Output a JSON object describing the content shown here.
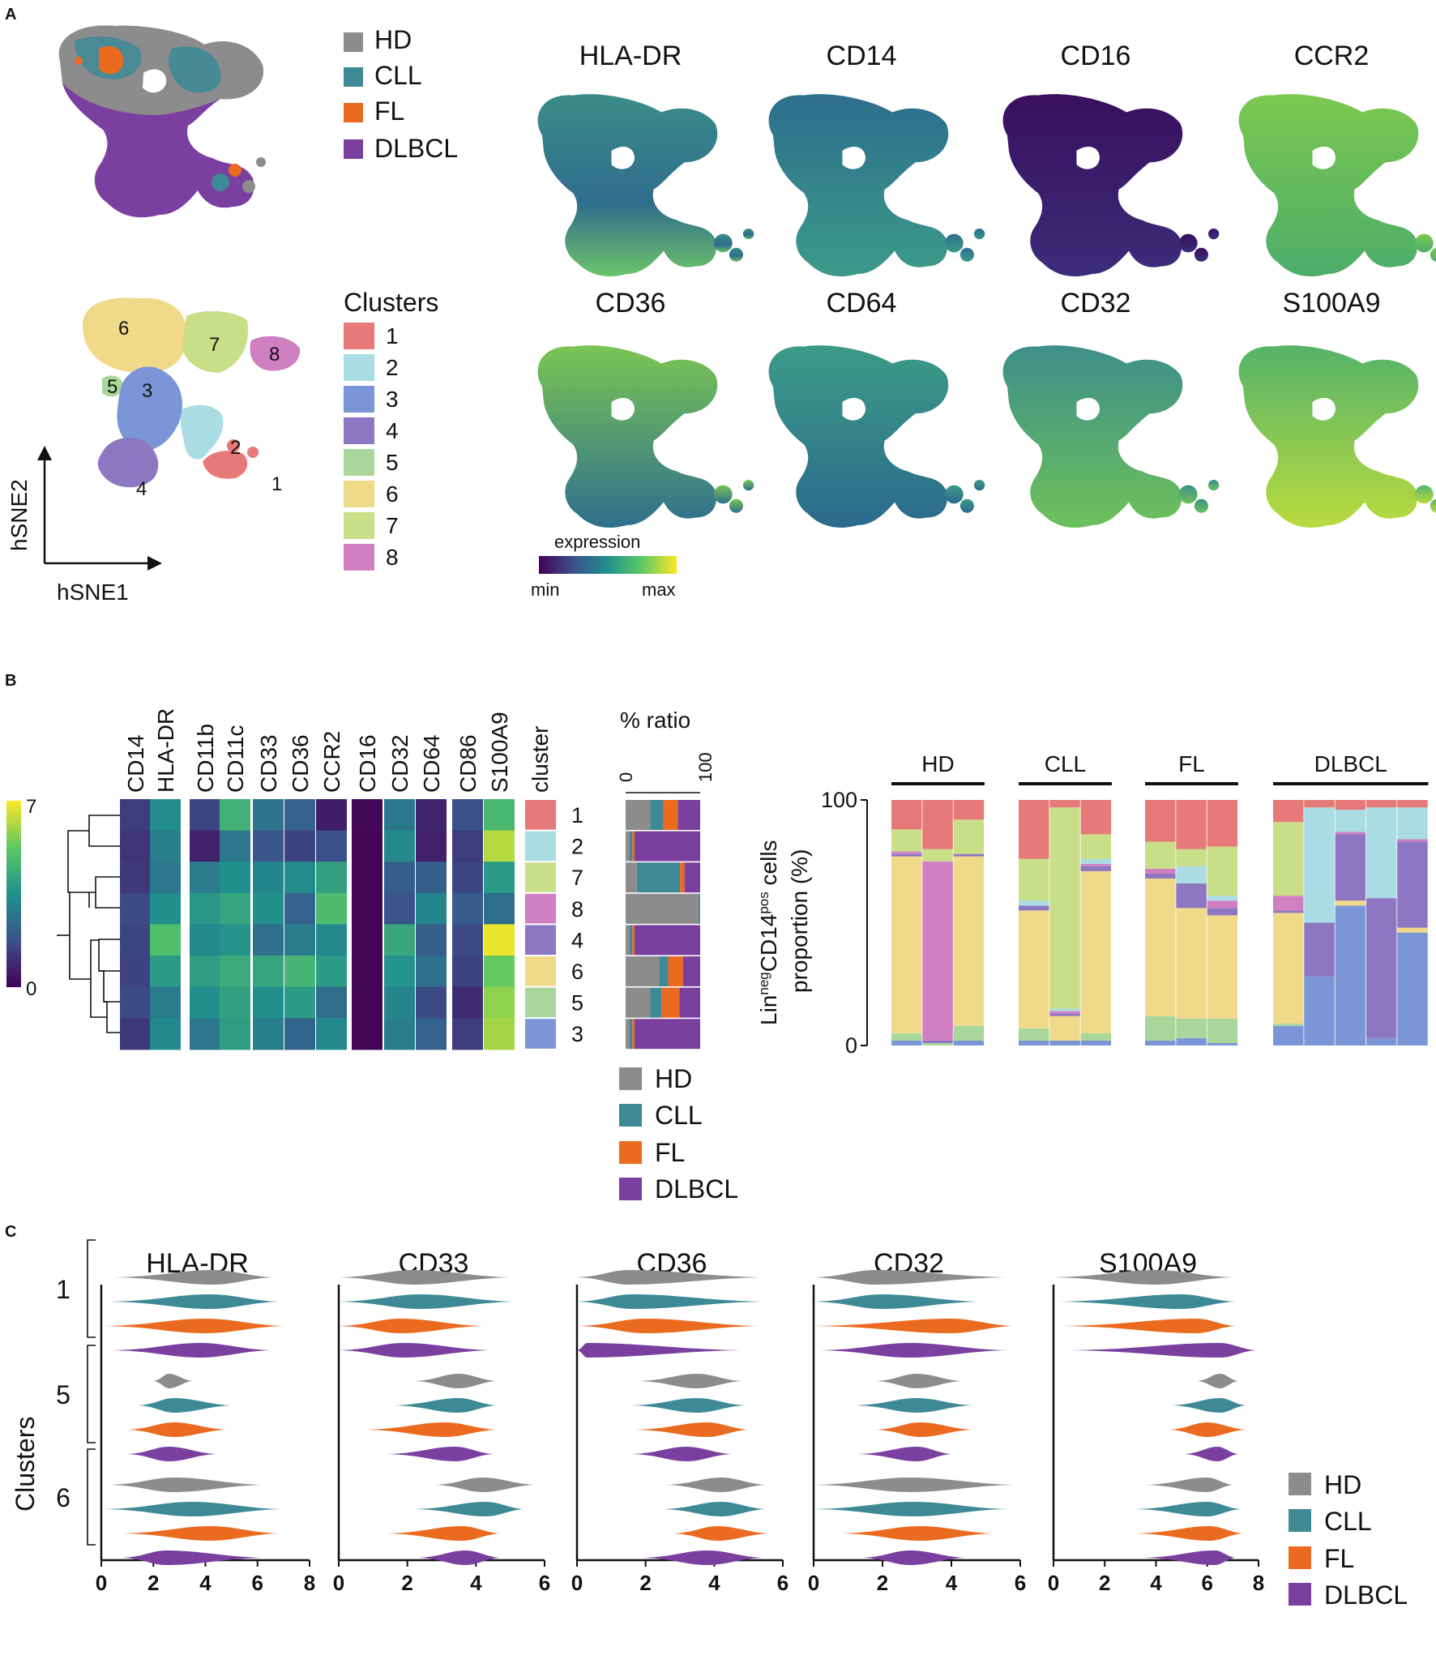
{
  "figure": {
    "panel_labels": {
      "a": "A",
      "b": "B",
      "c": "C"
    },
    "groups": [
      {
        "name": "HD",
        "color": "#8c8c8c"
      },
      {
        "name": "CLL",
        "color": "#3d8a96"
      },
      {
        "name": "FL",
        "color": "#ea6a1f"
      },
      {
        "name": "DLBCL",
        "color": "#7b3fa0"
      }
    ],
    "clusters": [
      {
        "id": "1",
        "color": "#e77a78"
      },
      {
        "id": "2",
        "color": "#a9dde3"
      },
      {
        "id": "3",
        "color": "#7b96d6"
      },
      {
        "id": "4",
        "color": "#8d77c2"
      },
      {
        "id": "5",
        "color": "#a9d79b"
      },
      {
        "id": "6",
        "color": "#f1d98a"
      },
      {
        "id": "7",
        "color": "#c8df88"
      },
      {
        "id": "8",
        "color": "#cf7fc2"
      }
    ],
    "clusters_title": "Clusters",
    "hsne_axes": {
      "x": "hSNE1",
      "y": "hSNE2"
    },
    "markers_a": [
      "HLA-DR",
      "CD14",
      "CD16",
      "CCR2",
      "CD36",
      "CD64",
      "CD32",
      "S100A9"
    ],
    "colorbar_a": {
      "title": "expression",
      "min": "min",
      "max": "max"
    }
  },
  "chart_data": [
    {
      "type": "heatmap",
      "panel": "B",
      "columns": [
        "CD14",
        "HLA-DR",
        "CD11b",
        "CD11c",
        "CD33",
        "CD36",
        "CCR2",
        "CD16",
        "CD32",
        "CD64",
        "CD86",
        "S100A9",
        "cluster"
      ],
      "row_order": [
        "1",
        "2",
        "7",
        "8",
        "4",
        "6",
        "5",
        "3"
      ],
      "colorbar": {
        "min": "0",
        "max": "7"
      },
      "values": [
        [
          1.3,
          3.4,
          1.5,
          4.5,
          2.7,
          2.2,
          0.6,
          0.2,
          2.8,
          0.8,
          1.7,
          4.7
        ],
        [
          1.1,
          3.0,
          0.7,
          2.8,
          1.9,
          1.4,
          1.7,
          0.1,
          3.3,
          0.7,
          1.3,
          6.2
        ],
        [
          1.2,
          2.8,
          2.9,
          3.5,
          3.2,
          3.4,
          4.0,
          0.1,
          2.1,
          2.1,
          1.5,
          3.8
        ],
        [
          1.6,
          3.5,
          3.7,
          4.1,
          3.5,
          2.2,
          4.8,
          0.1,
          1.8,
          3.2,
          2.0,
          2.6
        ],
        [
          1.5,
          4.9,
          3.3,
          3.6,
          2.6,
          2.9,
          3.3,
          0.1,
          4.2,
          2.1,
          1.6,
          6.8
        ],
        [
          1.4,
          3.8,
          3.9,
          4.3,
          4.1,
          4.6,
          3.8,
          0.1,
          3.6,
          2.6,
          1.4,
          5.3
        ],
        [
          1.6,
          2.9,
          3.5,
          4.0,
          3.5,
          3.8,
          2.5,
          0.1,
          3.2,
          1.6,
          0.9,
          5.8
        ],
        [
          1.2,
          3.3,
          2.8,
          3.9,
          3.0,
          2.3,
          3.3,
          0.1,
          3.0,
          2.2,
          1.3,
          6.0
        ]
      ]
    },
    {
      "type": "bar",
      "panel": "B-ratio",
      "title": "% ratio",
      "ticks": [
        "0",
        "100"
      ],
      "categories": [
        "1",
        "2",
        "7",
        "8",
        "4",
        "6",
        "5",
        "3"
      ],
      "series": [
        {
          "name": "HD",
          "values": [
            33,
            5,
            15,
            98,
            5,
            45,
            33,
            5
          ]
        },
        {
          "name": "CLL",
          "values": [
            17,
            4,
            58,
            2,
            4,
            12,
            15,
            4
          ]
        },
        {
          "name": "FL",
          "values": [
            20,
            3,
            6,
            0,
            3,
            20,
            24,
            3
          ]
        },
        {
          "name": "DLBCL",
          "values": [
            30,
            88,
            21,
            0,
            88,
            23,
            28,
            88
          ]
        }
      ]
    },
    {
      "type": "bar",
      "panel": "B-proportion",
      "ylabel_main": "Lin",
      "ylabel_sup1": "neg",
      "ylabel_mid": "CD14",
      "ylabel_sup2": "pos",
      "ylabel_tail": " cells",
      "ylabel_line2": "proportion (%)",
      "yticks": [
        "0",
        "100"
      ],
      "groups": [
        "HD",
        "CLL",
        "FL",
        "DLBCL"
      ],
      "stack_order_bottom_to_top": [
        "3",
        "5",
        "6",
        "4",
        "8",
        "2",
        "7",
        "1"
      ],
      "samples": [
        {
          "group": "HD",
          "values": [
            2,
            3,
            72,
            1,
            1,
            0,
            9,
            12
          ]
        },
        {
          "group": "HD",
          "values": [
            0,
            1,
            0,
            1,
            73,
            0,
            5,
            20
          ]
        },
        {
          "group": "HD",
          "values": [
            2,
            6,
            69,
            1,
            0,
            0,
            14,
            8
          ]
        },
        {
          "group": "CLL",
          "values": [
            2,
            5,
            48,
            2,
            0,
            2,
            17,
            24
          ]
        },
        {
          "group": "CLL",
          "values": [
            2,
            0,
            10,
            1,
            1,
            1,
            82,
            3
          ]
        },
        {
          "group": "CLL",
          "values": [
            2,
            3,
            66,
            2,
            1,
            2,
            10,
            14
          ]
        },
        {
          "group": "FL",
          "values": [
            2,
            10,
            56,
            2,
            2,
            0,
            11,
            17
          ]
        },
        {
          "group": "FL",
          "values": [
            3,
            8,
            45,
            10,
            0,
            7,
            7,
            20
          ]
        },
        {
          "group": "FL",
          "values": [
            1,
            10,
            42,
            3,
            3,
            2,
            20,
            19
          ]
        },
        {
          "group": "DLBCL",
          "values": [
            8,
            1,
            45,
            1,
            6,
            0,
            30,
            9
          ]
        },
        {
          "group": "DLBCL",
          "values": [
            28,
            0,
            0,
            22,
            0,
            47,
            0,
            3
          ]
        },
        {
          "group": "DLBCL",
          "values": [
            57,
            0,
            2,
            27,
            1,
            9,
            0,
            4
          ]
        },
        {
          "group": "DLBCL",
          "values": [
            3,
            0,
            0,
            57,
            0,
            37,
            0,
            3
          ]
        },
        {
          "group": "DLBCL",
          "values": [
            46,
            0,
            2,
            35,
            1,
            13,
            0,
            3
          ]
        }
      ]
    },
    {
      "type": "violin",
      "panel": "C",
      "markers": [
        "HLA-DR",
        "CD33",
        "CD36",
        "CD32",
        "S100A9"
      ],
      "xlims": [
        [
          0,
          8
        ],
        [
          0,
          6
        ],
        [
          0,
          6
        ],
        [
          0,
          6
        ],
        [
          0,
          8
        ]
      ],
      "xticks": [
        [
          "0",
          "2",
          "4",
          "6",
          "8"
        ],
        [
          "0",
          "2",
          "4",
          "6"
        ],
        [
          "0",
          "2",
          "4",
          "6"
        ],
        [
          "0",
          "2",
          "4",
          "6"
        ],
        [
          "0",
          "2",
          "4",
          "6",
          "8"
        ]
      ],
      "ylabel": "Clusters",
      "cluster_groups": [
        "1",
        "5",
        "6"
      ],
      "groups": [
        "HD",
        "CLL",
        "FL",
        "DLBCL"
      ],
      "ranges": [
        [
          [
            [
              0.5,
              4.3,
              6.6
            ],
            [
              0.3,
              4.2,
              6.8
            ],
            [
              0.1,
              4.0,
              7.0
            ],
            [
              0.4,
              3.8,
              6.5
            ]
          ],
          [
            [
              2.0,
              2.6,
              3.5
            ],
            [
              1.4,
              2.8,
              5.0
            ],
            [
              1.0,
              2.8,
              4.8
            ],
            [
              1.0,
              2.6,
              4.4
            ]
          ],
          [
            [
              0.3,
              2.8,
              6.2
            ],
            [
              0.1,
              3.5,
              6.9
            ],
            [
              0.8,
              4.2,
              6.8
            ],
            [
              0.8,
              2.5,
              6.2
            ]
          ]
        ],
        [
          [
            [
              0.0,
              2.2,
              5.0
            ],
            [
              0.0,
              2.4,
              5.1
            ],
            [
              0.0,
              1.8,
              4.2
            ],
            [
              0.0,
              1.9,
              4.4
            ]
          ],
          [
            [
              2.2,
              3.5,
              4.6
            ],
            [
              1.6,
              3.5,
              4.6
            ],
            [
              0.8,
              3.1,
              4.6
            ],
            [
              1.4,
              3.4,
              4.5
            ]
          ],
          [
            [
              2.8,
              4.2,
              5.7
            ],
            [
              2.2,
              4.3,
              5.4
            ],
            [
              1.4,
              3.6,
              4.7
            ],
            [
              2.3,
              3.7,
              4.7
            ]
          ]
        ],
        [
          [
            [
              0.0,
              1.5,
              5.4
            ],
            [
              0.0,
              1.6,
              5.4
            ],
            [
              0.0,
              2.0,
              5.3
            ],
            [
              0.0,
              0.3,
              4.8
            ]
          ],
          [
            [
              1.8,
              3.5,
              4.8
            ],
            [
              1.6,
              3.5,
              4.9
            ],
            [
              1.7,
              3.8,
              5.0
            ],
            [
              1.6,
              3.2,
              4.5
            ]
          ],
          [
            [
              2.6,
              4.2,
              5.5
            ],
            [
              2.5,
              4.2,
              5.5
            ],
            [
              2.8,
              4.1,
              5.6
            ],
            [
              1.9,
              3.8,
              5.4
            ]
          ]
        ],
        [
          [
            [
              0.0,
              1.8,
              5.6
            ],
            [
              0.0,
              2.0,
              4.8
            ],
            [
              0.0,
              4.0,
              5.8
            ],
            [
              0.2,
              2.8,
              5.6
            ]
          ],
          [
            [
              1.8,
              3.0,
              4.3
            ],
            [
              1.2,
              3.0,
              4.6
            ],
            [
              1.8,
              3.1,
              4.6
            ],
            [
              1.3,
              3.0,
              4.0
            ]
          ],
          [
            [
              0.0,
              2.8,
              5.8
            ],
            [
              0.0,
              2.9,
              5.6
            ],
            [
              0.8,
              3.1,
              5.2
            ],
            [
              1.4,
              2.8,
              4.4
            ]
          ]
        ],
        [
          [
            [
              0.0,
              4.0,
              7.0
            ],
            [
              0.2,
              5.0,
              7.1
            ],
            [
              0.3,
              5.6,
              7.1
            ],
            [
              0.5,
              6.5,
              7.9
            ]
          ],
          [
            [
              5.6,
              6.5,
              7.2
            ],
            [
              4.6,
              6.5,
              7.5
            ],
            [
              4.5,
              6.0,
              7.5
            ],
            [
              5.1,
              6.4,
              7.2
            ]
          ],
          [
            [
              3.6,
              6.0,
              7.0
            ],
            [
              3.2,
              6.0,
              7.3
            ],
            [
              3.2,
              6.1,
              7.4
            ],
            [
              3.5,
              6.3,
              7.1
            ]
          ]
        ]
      ]
    }
  ]
}
